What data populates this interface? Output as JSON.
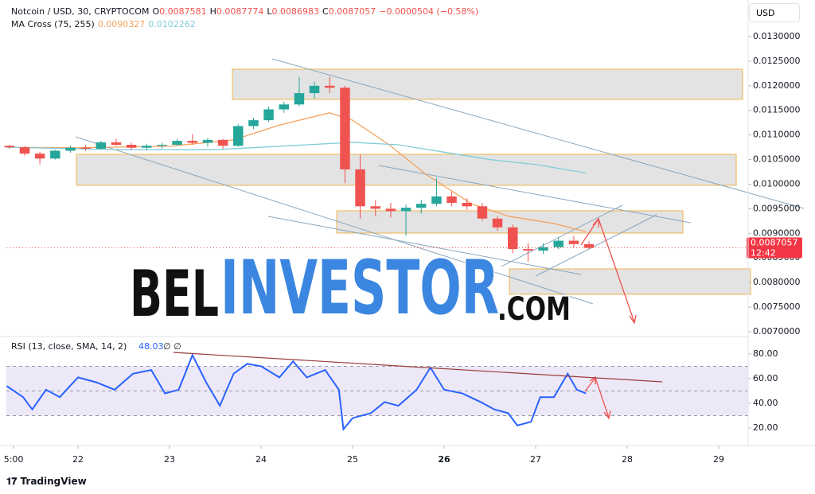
{
  "chart_data": [
    {
      "type": "candlestick",
      "title": "Notcoin / USD, 30, CRYPTOCOM",
      "ohlc_legend": [
        {
          "label": "O",
          "value": 0.0087581
        },
        {
          "label": "H",
          "value": 0.0087774
        },
        {
          "label": "L",
          "value": 0.0086983
        },
        {
          "label": "C",
          "value": 0.0087057
        }
      ],
      "change_label": "−0.0000504 (−0.58%)",
      "indicator_label": "MA Cross (75, 255)",
      "currency": "USD",
      "price_countdown": "12:42",
      "up_color": "#26a69a",
      "down_color": "#ef5350",
      "x": [
        21.25,
        21.417,
        21.583,
        21.75,
        21.917,
        22.083,
        22.25,
        22.417,
        22.583,
        22.75,
        22.917,
        23.083,
        23.25,
        23.417,
        23.583,
        23.75,
        23.917,
        24.083,
        24.25,
        24.417,
        24.583,
        24.75,
        24.917,
        25.083,
        25.25,
        25.417,
        25.583,
        25.75,
        25.917,
        26.083,
        26.25,
        26.417,
        26.583,
        26.75,
        26.917,
        27.083,
        27.25,
        27.417,
        27.583
      ],
      "open": [
        0.01078,
        0.01075,
        0.01062,
        0.01052,
        0.01068,
        0.01074,
        0.01072,
        0.01085,
        0.0108,
        0.01074,
        0.01078,
        0.0108,
        0.01088,
        0.01084,
        0.0109,
        0.01078,
        0.01118,
        0.0113,
        0.01152,
        0.01162,
        0.01185,
        0.012,
        0.01196,
        0.0103,
        0.00955,
        0.0095,
        0.00945,
        0.00952,
        0.0096,
        0.00975,
        0.00962,
        0.00955,
        0.0093,
        0.00912,
        0.00868,
        0.00865,
        0.00872,
        0.00885,
        0.00878
      ],
      "high": [
        0.0108,
        0.01077,
        0.01066,
        0.0107,
        0.01078,
        0.0108,
        0.01088,
        0.01092,
        0.01084,
        0.01082,
        0.01084,
        0.01092,
        0.01102,
        0.01094,
        0.01092,
        0.01122,
        0.01135,
        0.01158,
        0.01168,
        0.01218,
        0.01208,
        0.01218,
        0.012,
        0.0106,
        0.00968,
        0.00962,
        0.00958,
        0.00968,
        0.01012,
        0.00985,
        0.00972,
        0.00962,
        0.00935,
        0.00918,
        0.0088,
        0.0088,
        0.00892,
        0.00895,
        0.00884
      ],
      "low": [
        0.01072,
        0.01058,
        0.0104,
        0.0105,
        0.01064,
        0.01068,
        0.0107,
        0.01078,
        0.0107,
        0.0107,
        0.01072,
        0.01078,
        0.0108,
        0.01076,
        0.01072,
        0.01076,
        0.01112,
        0.01126,
        0.01145,
        0.01158,
        0.01174,
        0.01185,
        0.01002,
        0.0093,
        0.00935,
        0.00932,
        0.00895,
        0.0094,
        0.00955,
        0.00955,
        0.00948,
        0.00925,
        0.00905,
        0.0086,
        0.00842,
        0.00858,
        0.00868,
        0.00872,
        0.00868
      ],
      "close": [
        0.01075,
        0.01062,
        0.01052,
        0.01068,
        0.01074,
        0.01072,
        0.01085,
        0.0108,
        0.01074,
        0.01078,
        0.0108,
        0.01088,
        0.01084,
        0.0109,
        0.01078,
        0.01118,
        0.0113,
        0.01152,
        0.01162,
        0.01185,
        0.012,
        0.01196,
        0.0103,
        0.00955,
        0.0095,
        0.00945,
        0.00952,
        0.0096,
        0.00975,
        0.00962,
        0.00955,
        0.0093,
        0.00912,
        0.00868,
        0.00865,
        0.00872,
        0.00885,
        0.00878,
        0.0087057
      ],
      "series": [
        {
          "color": "#f5a25d",
          "x": [
            21.22,
            22,
            23,
            23.7,
            24.2,
            24.75,
            25,
            25.4,
            25.8,
            26.3,
            26.7,
            27.2,
            27.55
          ],
          "values": [
            0.01075,
            0.01074,
            0.01077,
            0.0109,
            0.0112,
            0.01145,
            0.0113,
            0.0108,
            0.0102,
            0.0096,
            0.00935,
            0.0092,
            0.0090327
          ]
        },
        {
          "color": "#80cdd9",
          "x": [
            21.22,
            22.5,
            23.5,
            24.5,
            25,
            25.5,
            26,
            26.5,
            27,
            27.55
          ],
          "values": [
            0.01075,
            0.0107,
            0.0107,
            0.0108,
            0.01085,
            0.0108,
            0.01065,
            0.0105,
            0.0104,
            0.0102262
          ]
        }
      ],
      "xlim": [
        21.217,
        29.322
      ],
      "ylim": [
        0.006919,
        0.013679
      ],
      "yticks": [
        {
          "value": 0.007,
          "label": "0.0070000"
        },
        {
          "value": 0.0075,
          "label": "0.0075000"
        },
        {
          "value": 0.008,
          "label": "0.0080000"
        },
        {
          "value": 0.0085,
          "label": "0.0085000"
        },
        {
          "value": 0.009,
          "label": "0.0090000"
        },
        {
          "value": 0.0095,
          "label": "0.0095000"
        },
        {
          "value": 0.01,
          "label": "0.0100000"
        },
        {
          "value": 0.0105,
          "label": "0.0105000"
        },
        {
          "value": 0.011,
          "label": "0.0110000"
        },
        {
          "value": 0.0115,
          "label": "0.0115000"
        },
        {
          "value": 0.012,
          "label": "0.0120000"
        },
        {
          "value": 0.0125,
          "label": "0.0125000"
        },
        {
          "value": 0.013,
          "label": "0.0130000"
        }
      ]
    },
    {
      "type": "line",
      "title": "RSI (13, close, SMA, 14, 2)",
      "status": "∅ ∅",
      "color": "#2962ff",
      "x": [
        21.22,
        21.4,
        21.5,
        21.65,
        21.8,
        22,
        22.2,
        22.4,
        22.6,
        22.8,
        22.95,
        23.1,
        23.25,
        23.4,
        23.55,
        23.7,
        23.85,
        24,
        24.2,
        24.35,
        24.5,
        24.7,
        24.85,
        24.9,
        25,
        25.2,
        25.35,
        25.5,
        25.7,
        25.85,
        26,
        26.2,
        26.4,
        26.55,
        26.7,
        26.8,
        26.95,
        27.05,
        27.2,
        27.35,
        27.45,
        27.55
      ],
      "values": [
        54,
        45,
        35,
        51,
        45,
        61,
        57,
        51,
        64,
        67,
        48,
        51,
        79,
        57,
        38,
        64,
        72,
        70,
        61,
        74,
        61,
        67,
        51,
        19,
        28,
        32,
        41,
        38,
        51,
        69,
        51,
        48,
        41,
        35,
        32,
        22,
        25,
        45,
        45,
        64,
        51,
        48.03
      ],
      "levels": [
        70,
        50,
        30
      ],
      "band_color": "#ede8f7",
      "xlim": [
        21.217,
        29.322
      ],
      "xticks": [
        {
          "value": 21.296,
          "label": "5:00"
        },
        22,
        23,
        24,
        25,
        26,
        27,
        28,
        29
      ],
      "ylim": [
        5.8,
        93.5
      ],
      "yticks": [
        {
          "value": 20,
          "label": "20.00"
        },
        {
          "value": 40,
          "label": "40.00"
        },
        {
          "value": 60,
          "label": "60.00"
        },
        {
          "value": 80,
          "label": "80.00"
        }
      ]
    }
  ],
  "watermark": [
    "BEL",
    "INVESTOR",
    ".COM"
  ],
  "footer": "TradingView"
}
